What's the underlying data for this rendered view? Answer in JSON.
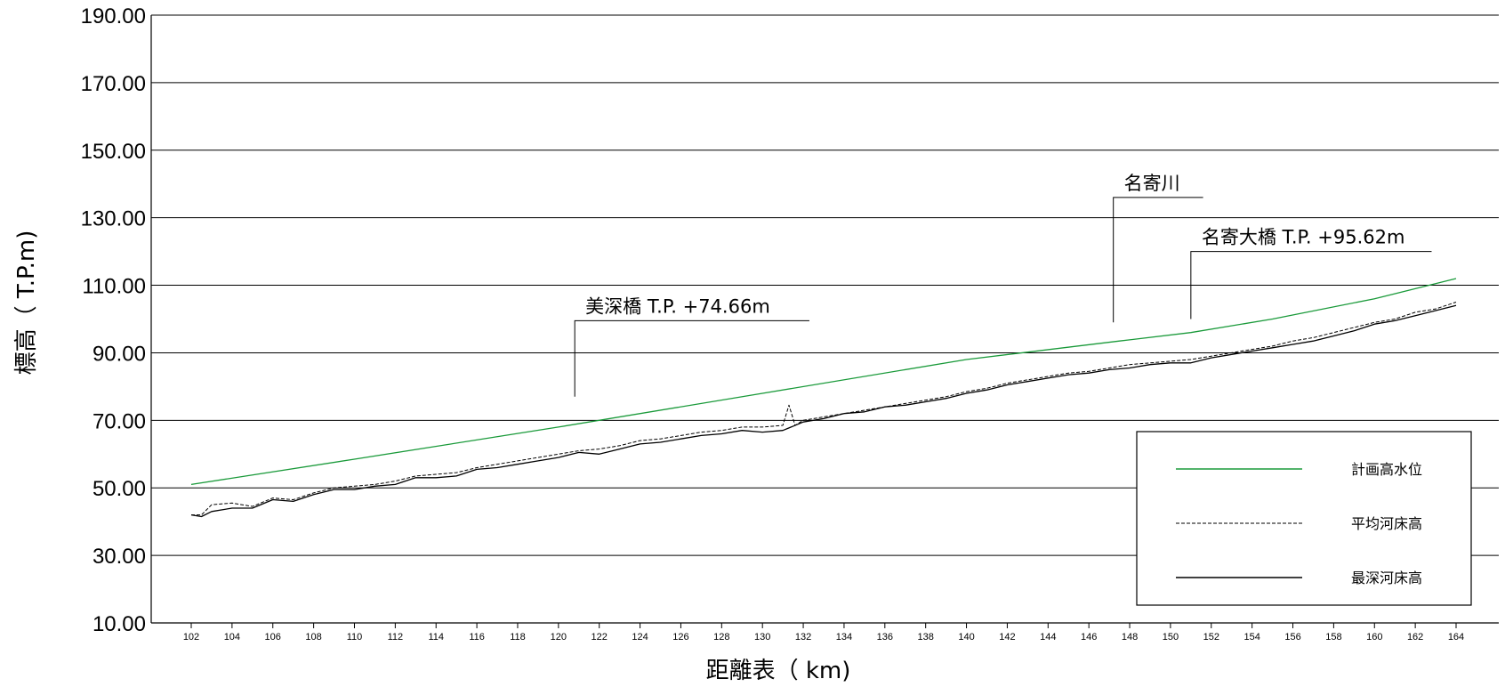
{
  "chart_data": {
    "type": "line",
    "ylabel": "標高（ T.P.m)",
    "xlabel": "距離表（ km)",
    "ylim": [
      10,
      190
    ],
    "xlim": [
      101.5,
      165
    ],
    "y_ticks": [
      "10.00",
      "30.00",
      "50.00",
      "70.00",
      "90.00",
      "110.00",
      "130.00",
      "150.00",
      "170.00",
      "190.00"
    ],
    "y_tick_values": [
      10,
      30,
      50,
      70,
      90,
      110,
      130,
      150,
      170,
      190
    ],
    "x_ticks": [
      "102",
      "104",
      "106",
      "108",
      "110",
      "112",
      "114",
      "116",
      "118",
      "120",
      "122",
      "124",
      "126",
      "128",
      "130",
      "132",
      "134",
      "136",
      "138",
      "140",
      "142",
      "144",
      "146",
      "148",
      "150",
      "152",
      "154",
      "156",
      "158",
      "160",
      "162",
      "164"
    ],
    "x_tick_values": [
      102,
      104,
      106,
      108,
      110,
      112,
      114,
      116,
      118,
      120,
      122,
      124,
      126,
      128,
      130,
      132,
      134,
      136,
      138,
      140,
      142,
      144,
      146,
      148,
      150,
      152,
      154,
      156,
      158,
      160,
      162,
      164
    ],
    "grid": "horizontal",
    "legend_position": "bottom-right",
    "series": [
      {
        "name": "計画高水位",
        "color": "#1a9a3a",
        "style": "solid",
        "x": [
          102,
          110,
          120,
          130,
          140,
          147.5,
          151,
          155,
          160,
          164
        ],
        "y": [
          51,
          58.5,
          68,
          78,
          88,
          93.5,
          96,
          100,
          106,
          112
        ]
      },
      {
        "name": "平均河床高",
        "color": "#000000",
        "style": "dashed",
        "x": [
          102,
          102.5,
          103,
          104,
          105,
          106,
          107,
          108,
          109,
          110,
          111,
          112,
          113,
          114,
          115,
          116,
          117,
          118,
          119,
          120,
          121,
          122,
          123,
          124,
          125,
          126,
          127,
          128,
          129,
          130,
          131,
          131.3,
          131.6,
          132,
          133,
          134,
          135,
          136,
          137,
          138,
          139,
          140,
          141,
          142,
          143,
          144,
          145,
          146,
          147,
          148,
          149,
          150,
          151,
          152,
          153,
          154,
          155,
          156,
          157,
          158,
          159,
          160,
          161,
          162,
          163,
          164
        ],
        "y": [
          42,
          42,
          45,
          45.5,
          44.5,
          47,
          46.5,
          48.5,
          50,
          50.5,
          51,
          52,
          53.5,
          54,
          54.5,
          56,
          57,
          58,
          59,
          60,
          61,
          61.5,
          62.5,
          64,
          64.5,
          65.5,
          66.5,
          67,
          68,
          68,
          68.5,
          74.5,
          68.5,
          70,
          71,
          72,
          73,
          74,
          75,
          76,
          77,
          78.5,
          79.5,
          81,
          82,
          83,
          84,
          84.5,
          85.5,
          86.5,
          87,
          87.5,
          88,
          89,
          90,
          91,
          92,
          93.5,
          94.5,
          96,
          97.5,
          99,
          100,
          102,
          103,
          105
        ]
      },
      {
        "name": "最深河床高",
        "color": "#000000",
        "style": "solid",
        "x": [
          102,
          102.5,
          103,
          104,
          105,
          106,
          107,
          108,
          109,
          110,
          111,
          112,
          113,
          114,
          115,
          116,
          117,
          118,
          119,
          120,
          121,
          122,
          123,
          124,
          125,
          126,
          127,
          128,
          129,
          130,
          131,
          132,
          133,
          134,
          135,
          136,
          137,
          138,
          139,
          140,
          141,
          142,
          143,
          144,
          145,
          146,
          147,
          148,
          149,
          150,
          151,
          152,
          153,
          154,
          155,
          156,
          157,
          158,
          159,
          160,
          161,
          162,
          163,
          164
        ],
        "y": [
          42,
          41.5,
          43,
          44,
          44,
          46.5,
          46,
          48,
          49.5,
          49.5,
          50.5,
          51,
          53,
          53,
          53.5,
          55.5,
          56,
          57,
          58,
          59,
          60.5,
          60,
          61.5,
          63,
          63.5,
          64.5,
          65.5,
          66,
          67,
          66.5,
          67,
          69.5,
          70.5,
          72,
          72.5,
          74,
          74.5,
          75.5,
          76.5,
          78,
          79,
          80.5,
          81.5,
          82.5,
          83.5,
          84,
          85,
          85.5,
          86.5,
          87,
          87,
          88.5,
          89.5,
          90.5,
          91.5,
          92.5,
          93.5,
          95,
          96.5,
          98.5,
          99.5,
          101,
          102.5,
          104
        ]
      }
    ],
    "annotations": [
      {
        "text": "美深橋  T.P. +74.66m",
        "x": 120.8,
        "y_tip": 77,
        "y_top": 99.5,
        "x_end": 132.3
      },
      {
        "text": "名寄川",
        "x": 147.2,
        "y_tip": 99,
        "y_top": 136,
        "x_end": 151.6
      },
      {
        "text": "名寄大橋  T.P. +95.62m",
        "x": 151,
        "y_tip": 100,
        "y_top": 120,
        "x_end": 162.8
      }
    ]
  }
}
